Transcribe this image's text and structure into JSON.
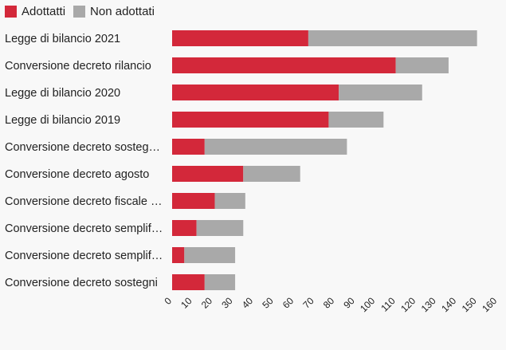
{
  "chart_data": {
    "type": "bar",
    "orientation": "horizontal",
    "stacked": true,
    "categories": [
      "Legge di bilancio 2021",
      "Conversione decreto rilancio",
      "Legge di bilancio 2020",
      "Legge di bilancio 2019",
      "Conversione decreto sosteg…",
      "Conversione decreto agosto",
      "Conversione decreto fiscale …",
      "Conversione decreto semplif…",
      "Conversione decreto semplif…",
      "Conversione decreto sostegni"
    ],
    "series": [
      {
        "name": "Adottatti",
        "color": "#d3283a",
        "values": [
          67,
          110,
          82,
          77,
          16,
          35,
          21,
          12,
          6,
          16
        ]
      },
      {
        "name": "Non adottati",
        "color": "#a9a9a9",
        "values": [
          83,
          26,
          41,
          27,
          70,
          28,
          15,
          23,
          25,
          15
        ]
      }
    ],
    "xticks": [
      "0",
      "10",
      "20",
      "30",
      "40",
      "50",
      "60",
      "70",
      "80",
      "90",
      "100",
      "110",
      "120",
      "130",
      "140",
      "150",
      "160"
    ],
    "xlim": [
      0,
      160
    ],
    "legend_position": "top-left",
    "grid": false
  }
}
